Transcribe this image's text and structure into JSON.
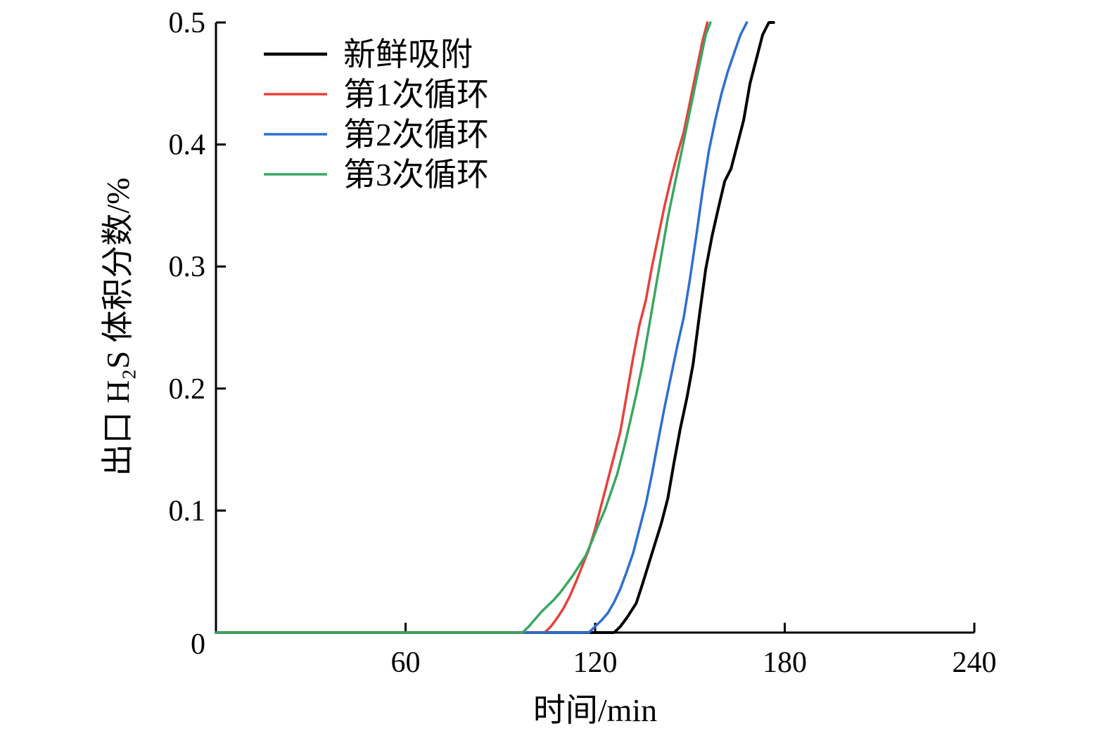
{
  "chart_data": {
    "type": "line",
    "xlabel": "时间/min",
    "ylabel": "出口 H₂S 体积分数/%",
    "xlim": [
      0,
      240
    ],
    "ylim": [
      0,
      0.5
    ],
    "x_ticks": [
      0,
      60,
      120,
      180,
      240
    ],
    "x_tick_labels": [
      "",
      "60",
      "120",
      "180",
      "240"
    ],
    "y_ticks": [
      0,
      0.1,
      0.2,
      0.3,
      0.4,
      0.5
    ],
    "y_tick_labels": [
      "0",
      "0.1",
      "0.2",
      "0.3",
      "0.4",
      "0.5"
    ],
    "grid": false,
    "legend_position": "top-left",
    "series": [
      {
        "name": "新鲜吸附",
        "color": "#000000",
        "x": [
          0,
          126,
          128,
          130,
          133,
          135,
          138,
          141,
          143,
          145,
          147,
          149,
          151,
          153,
          155,
          157,
          159,
          161,
          163,
          165,
          167,
          169,
          171,
          173,
          175,
          176.5
        ],
        "y": [
          0,
          0,
          0.005,
          0.012,
          0.024,
          0.04,
          0.065,
          0.09,
          0.11,
          0.14,
          0.168,
          0.192,
          0.22,
          0.26,
          0.298,
          0.325,
          0.348,
          0.37,
          0.38,
          0.4,
          0.42,
          0.45,
          0.47,
          0.49,
          0.5,
          0.5
        ]
      },
      {
        "name": "第1次循环",
        "color": "#e8403c",
        "x": [
          0,
          104,
          106,
          108,
          110,
          112,
          114,
          116,
          118,
          120,
          122,
          124,
          126,
          128,
          130,
          132,
          134,
          136,
          138,
          140,
          142,
          144,
          146,
          148,
          150,
          152,
          154,
          155.5
        ],
        "y": [
          0,
          0,
          0.005,
          0.012,
          0.02,
          0.03,
          0.042,
          0.055,
          0.068,
          0.085,
          0.105,
          0.125,
          0.145,
          0.165,
          0.195,
          0.225,
          0.252,
          0.272,
          0.3,
          0.325,
          0.35,
          0.372,
          0.392,
          0.41,
          0.435,
          0.46,
          0.485,
          0.5
        ]
      },
      {
        "name": "第2次循环",
        "color": "#2e6fd0",
        "x": [
          0,
          118,
          120,
          122,
          124,
          126,
          128,
          130,
          132,
          134,
          136,
          138,
          140,
          142,
          144,
          146,
          148,
          150,
          152,
          154,
          156,
          158,
          160,
          162,
          164,
          166,
          168
        ],
        "y": [
          0,
          0,
          0.005,
          0.01,
          0.016,
          0.025,
          0.036,
          0.05,
          0.065,
          0.085,
          0.105,
          0.13,
          0.158,
          0.185,
          0.21,
          0.235,
          0.258,
          0.29,
          0.325,
          0.362,
          0.395,
          0.42,
          0.442,
          0.46,
          0.475,
          0.49,
          0.5
        ]
      },
      {
        "name": "第3次循环",
        "color": "#3aa661",
        "x": [
          0,
          97,
          99,
          101,
          103,
          105,
          107,
          109,
          111,
          113,
          115,
          117,
          119,
          121,
          123,
          125,
          127,
          129,
          131,
          133,
          135,
          137,
          139,
          141,
          143,
          145,
          147,
          149,
          151,
          153,
          155,
          156.5
        ],
        "y": [
          0,
          0,
          0.005,
          0.011,
          0.017,
          0.022,
          0.027,
          0.033,
          0.04,
          0.047,
          0.055,
          0.063,
          0.075,
          0.088,
          0.1,
          0.115,
          0.13,
          0.15,
          0.172,
          0.195,
          0.22,
          0.25,
          0.28,
          0.31,
          0.34,
          0.365,
          0.39,
          0.415,
          0.44,
          0.465,
          0.49,
          0.5
        ]
      }
    ]
  }
}
